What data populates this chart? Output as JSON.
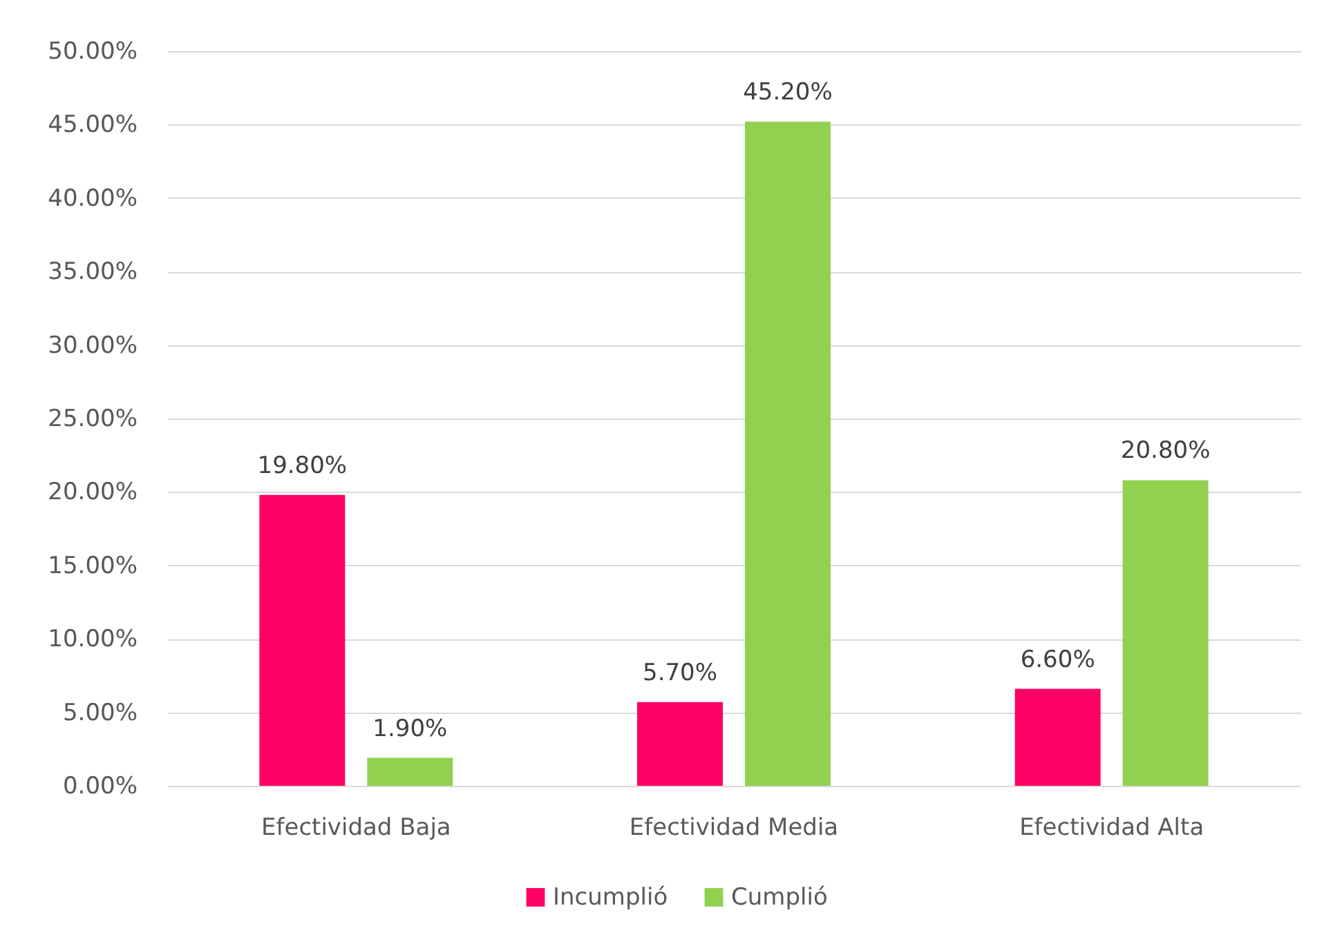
{
  "chart_data": {
    "type": "bar",
    "categories": [
      "Efectividad Baja",
      "Efectividad Media",
      "Efectividad Alta"
    ],
    "series": [
      {
        "name": "Incumplió",
        "color": "#ff0066",
        "values": [
          19.8,
          5.7,
          6.6
        ],
        "value_labels": [
          "19.80%",
          "5.70%",
          "6.60%"
        ]
      },
      {
        "name": "Cumplió",
        "color": "#92d050",
        "values": [
          1.9,
          45.2,
          20.8
        ],
        "value_labels": [
          "1.90%",
          "45.20%",
          "20.80%"
        ]
      }
    ],
    "ylim": [
      0,
      50
    ],
    "yticks": [
      {
        "value": 0,
        "label": "0.00%"
      },
      {
        "value": 5,
        "label": "5.00%"
      },
      {
        "value": 10,
        "label": "10.00%"
      },
      {
        "value": 15,
        "label": "15.00%"
      },
      {
        "value": 20,
        "label": "20.00%"
      },
      {
        "value": 25,
        "label": "25.00%"
      },
      {
        "value": 30,
        "label": "30.00%"
      },
      {
        "value": 35,
        "label": "35.00%"
      },
      {
        "value": 40,
        "label": "40.00%"
      },
      {
        "value": 45,
        "label": "45.00%"
      },
      {
        "value": 50,
        "label": "50.00%"
      }
    ],
    "grid": "y",
    "legend": "bottom"
  }
}
